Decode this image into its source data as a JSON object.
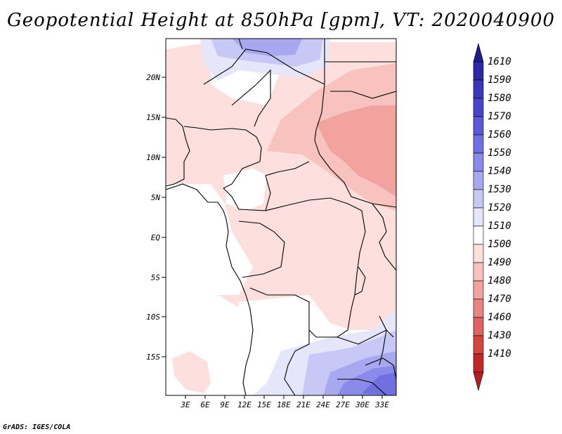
{
  "title": "Geopotential Height at 850hPa [gpm], VT: 2020040900",
  "credit": "GrADS: IGES/COLA",
  "map": {
    "lat_labels": [
      "20N",
      "15N",
      "10N",
      "5N",
      "EQ",
      "5S",
      "10S",
      "15S"
    ],
    "lon_labels": [
      "3E",
      "6E",
      "9E",
      "12E",
      "15E",
      "18E",
      "21E",
      "24E",
      "27E",
      "30E",
      "33E"
    ]
  },
  "colorbar": {
    "levels": [
      "1610",
      "1590",
      "1580",
      "1570",
      "1560",
      "1550",
      "1540",
      "1530",
      "1520",
      "1510",
      "1500",
      "1490",
      "1480",
      "1470",
      "1460",
      "1430",
      "1410"
    ],
    "colors": [
      "#1f1a8f",
      "#2a2aa5",
      "#3838b8",
      "#4646c8",
      "#5a5ad6",
      "#7070e2",
      "#8a8aea",
      "#a8a8f0",
      "#c8c8f6",
      "#e6e6fb",
      "#ffffff",
      "#fde0de",
      "#f8c2be",
      "#f3a39e",
      "#e98580",
      "#e06560",
      "#d54540",
      "#c02828"
    ],
    "bottom_color": "#b42020"
  }
}
